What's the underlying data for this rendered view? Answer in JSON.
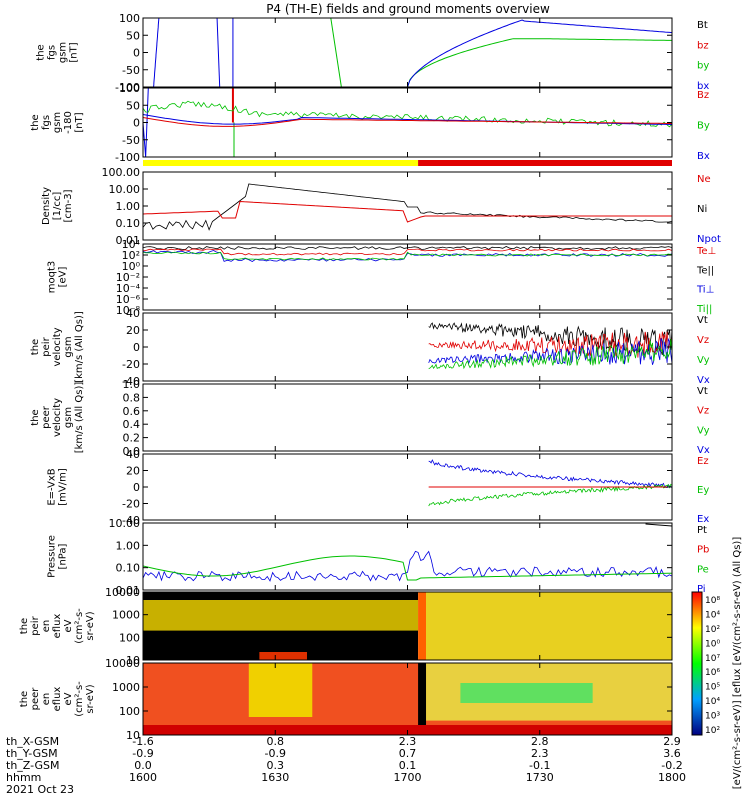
{
  "title": "P4 (TH-E) fields and ground moments overview",
  "colors": {
    "black": "#000000",
    "red": "#e00000",
    "green": "#00c000",
    "blue": "#0000e0",
    "yellow": "#ffff00"
  },
  "chart_data": {
    "type": "line",
    "x_ticks": [
      "1600",
      "1630",
      "1700",
      "1730",
      "1800"
    ],
    "x_minor": 5,
    "footer": {
      "rows": [
        {
          "label": "th_X-GSM",
          "values": [
            "-1.6",
            "0.8",
            "2.3",
            "2.8",
            "2.9"
          ]
        },
        {
          "label": "th_Y-GSM",
          "values": [
            "-0.9",
            "-0.9",
            "0.7",
            "2.3",
            "3.6"
          ]
        },
        {
          "label": "th_Z-GSM",
          "values": [
            "0.0",
            "0.3",
            "0.1",
            "-0.1",
            "-0.2"
          ]
        },
        {
          "label": "hhmm",
          "values": [
            "1600",
            "1630",
            "1700",
            "1730",
            "1800"
          ]
        }
      ],
      "date": "2021 Oct 23"
    },
    "panels": [
      {
        "ylabel": [
          "the",
          "fgs",
          "gsm",
          "[nT]"
        ],
        "ticks": [
          "100",
          "50",
          "0",
          "-50",
          "-100"
        ],
        "legend": [
          {
            "t": "Bt",
            "c": "black"
          },
          {
            "t": "bz",
            "c": "red"
          },
          {
            "t": "by",
            "c": "green"
          },
          {
            "t": "bx",
            "c": "blue"
          }
        ]
      },
      {
        "ylabel": [
          "the",
          "fgs",
          "gsm",
          "-180",
          "[nT]"
        ],
        "ticks": [
          "100",
          "50",
          "0",
          "-50",
          "-100"
        ],
        "legend": [
          {
            "t": "Bz",
            "c": "red"
          },
          {
            "t": "By",
            "c": "green"
          },
          {
            "t": "Bx",
            "c": "blue"
          }
        ]
      },
      {
        "ylabel": [
          "Density",
          "[1/cc]",
          "[cm-3]"
        ],
        "ticks": [
          "100.00",
          "10.00",
          "1.00",
          "0.10",
          "0.01"
        ],
        "legend": [
          {
            "t": "Ne",
            "c": "red"
          },
          {
            "t": "Ni",
            "c": "black"
          },
          {
            "t": "Npot",
            "c": "blue"
          }
        ]
      },
      {
        "ylabel": [
          "moqt3",
          "[eV]"
        ],
        "ticks": [
          "10⁴",
          "10²",
          "10⁰",
          "10⁻²",
          "10⁻⁴",
          "10⁻⁶",
          "10⁻⁸"
        ],
        "legend": [
          {
            "t": "Te⊥",
            "c": "red"
          },
          {
            "t": "Te||",
            "c": "black"
          },
          {
            "t": "Ti⊥",
            "c": "blue"
          },
          {
            "t": "Ti||",
            "c": "green"
          }
        ]
      },
      {
        "ylabel": [
          "the",
          "peir",
          "velocity",
          "gsm",
          "[km/s (All Qs)]"
        ],
        "ticks": [
          "40",
          "20",
          "0",
          "-20",
          "-40"
        ],
        "legend": [
          {
            "t": "Vt",
            "c": "black"
          },
          {
            "t": "Vz",
            "c": "red"
          },
          {
            "t": "Vy",
            "c": "green"
          },
          {
            "t": "Vx",
            "c": "blue"
          }
        ]
      },
      {
        "ylabel": [
          "the",
          "peer",
          "velocity",
          "gsm",
          "[km/s (All Qs)]"
        ],
        "ticks": [
          "1.0",
          "0.8",
          "0.6",
          "0.4",
          "0.2",
          "0.0"
        ],
        "legend": [
          {
            "t": "Vt",
            "c": "black"
          },
          {
            "t": "Vz",
            "c": "red"
          },
          {
            "t": "Vy",
            "c": "green"
          },
          {
            "t": "Vx",
            "c": "blue"
          }
        ]
      },
      {
        "ylabel": [
          "E=-VxB",
          "[mV/m]"
        ],
        "ticks": [
          "40",
          "20",
          "0",
          "-20",
          "-40"
        ],
        "legend": [
          {
            "t": "Ez",
            "c": "red"
          },
          {
            "t": "Ey",
            "c": "green"
          },
          {
            "t": "Ex",
            "c": "blue"
          }
        ]
      },
      {
        "ylabel": [
          "Pressure",
          "[nPa]"
        ],
        "ticks": [
          "10.00",
          "1.00",
          "0.10",
          "0.01"
        ],
        "legend": [
          {
            "t": "Pt",
            "c": "black"
          },
          {
            "t": "Pb",
            "c": "red"
          },
          {
            "t": "Pe",
            "c": "green"
          },
          {
            "t": "Pi",
            "c": "blue"
          }
        ]
      },
      {
        "ylabel": [
          "the",
          "peir",
          "en",
          "eflux",
          "eV",
          "(cm²-s-",
          "sr-eV)"
        ],
        "ticks": [
          "10000",
          "1000",
          "100",
          "10"
        ]
      },
      {
        "ylabel": [
          "the",
          "peer",
          "en",
          "eflux",
          "eV",
          "(cm²-s-",
          "sr-eV)"
        ],
        "ticks": [
          "10000",
          "1000",
          "100",
          "10"
        ]
      }
    ],
    "colorbar": {
      "label": "[eV/(cm²-s-sr-eV)] [eflux [eV/(cm²-s-sr-eV) (All Qs)]",
      "ticks_top": [
        "10⁸",
        "10⁴",
        "10²",
        "10⁰"
      ],
      "ticks_bottom": [
        "10⁷",
        "10⁶",
        "10⁵",
        "10⁴",
        "10³",
        "10²"
      ]
    }
  }
}
